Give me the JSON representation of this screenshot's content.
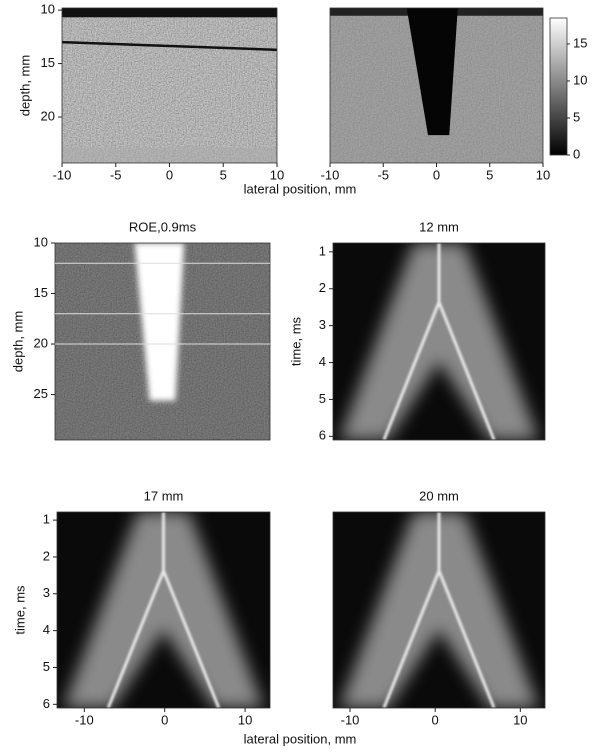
{
  "chart_data": [
    {
      "type": "image",
      "ylabel": "depth, mm",
      "xlabel": "lateral position, mm",
      "xlim": [
        -10,
        10
      ],
      "xticks": [
        -10,
        -5,
        0,
        5,
        10
      ],
      "ylim": [
        24.3,
        9.8
      ],
      "yticks": [
        10,
        15,
        20
      ]
    },
    {
      "type": "image",
      "xlim": [
        -10,
        10
      ],
      "xticks": [
        -10,
        -5,
        0,
        5,
        10
      ],
      "colorbar": {
        "clim": [
          0,
          18.5
        ],
        "ticks": [
          0,
          5,
          10,
          15
        ]
      }
    },
    {
      "type": "image",
      "title": "ROE,0.9ms",
      "ylabel": "depth, mm",
      "ylim": [
        29.5,
        10
      ],
      "yticks": [
        10,
        15,
        20,
        25
      ],
      "lines": [
        12,
        17,
        20
      ]
    },
    {
      "type": "image",
      "title": "12 mm",
      "ylabel": "time, ms",
      "ylim": [
        6.1,
        0.76
      ],
      "yticks": [
        1,
        2,
        3,
        4,
        5,
        6
      ]
    },
    {
      "type": "image",
      "title": "17 mm",
      "ylabel": "time, ms",
      "xlabel": "lateral position, mm",
      "xlim": [
        -13.4,
        13.1
      ],
      "xticks": [
        -10,
        0,
        10
      ],
      "ylim": [
        6.1,
        0.78
      ],
      "yticks": [
        1,
        2,
        3,
        4,
        5,
        6
      ]
    },
    {
      "type": "image",
      "title": "20 mm",
      "xlim": [
        -12,
        12.9
      ],
      "xticks": [
        -10,
        0,
        10
      ]
    }
  ]
}
